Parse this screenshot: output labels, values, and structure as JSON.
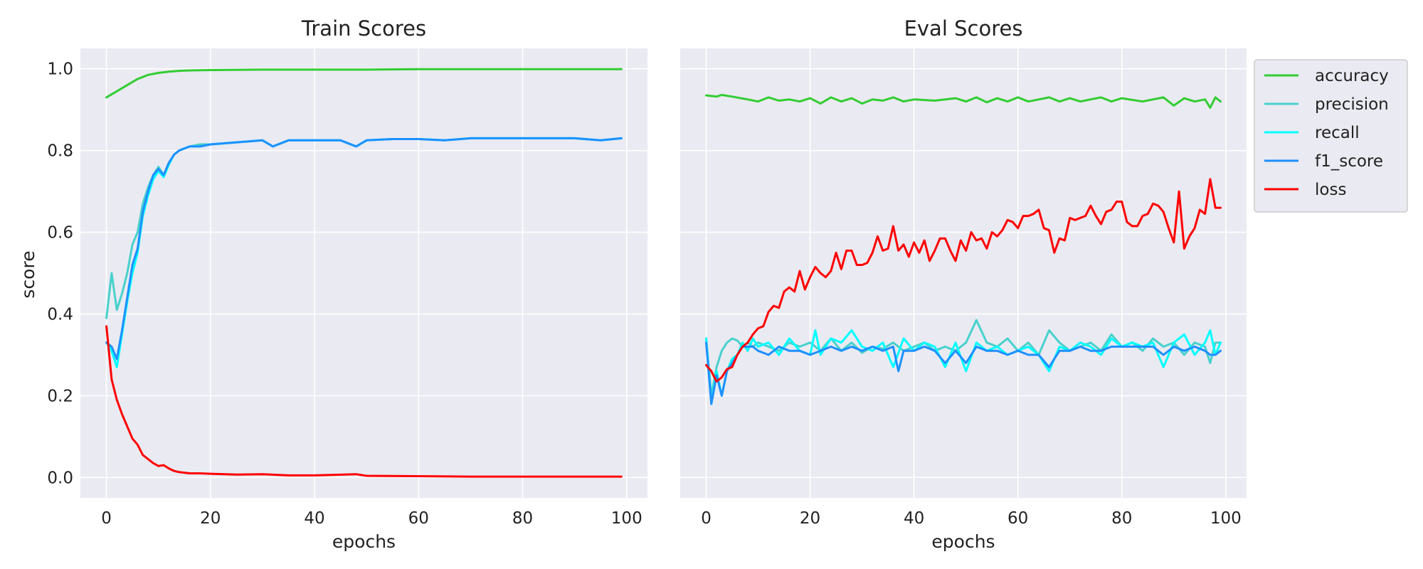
{
  "chart_data": [
    {
      "type": "line",
      "title": "Train Scores",
      "xlabel": "epochs",
      "ylabel": "score",
      "xlim": [
        -5,
        104
      ],
      "ylim": [
        -0.05,
        1.05
      ],
      "xticks": [
        0,
        20,
        40,
        60,
        80,
        100
      ],
      "yticks": [
        0.0,
        0.2,
        0.4,
        0.6,
        0.8,
        1.0
      ],
      "grid": true,
      "legend": "none",
      "series": [
        {
          "name": "accuracy",
          "color": "#32cd32",
          "x": [
            0,
            2,
            4,
            6,
            8,
            10,
            12,
            14,
            16,
            20,
            30,
            40,
            50,
            60,
            70,
            80,
            90,
            99
          ],
          "values": [
            0.93,
            0.945,
            0.96,
            0.975,
            0.985,
            0.99,
            0.993,
            0.995,
            0.996,
            0.997,
            0.998,
            0.998,
            0.998,
            0.999,
            0.999,
            0.999,
            0.999,
            0.999
          ]
        },
        {
          "name": "precision",
          "color": "#48d1cc",
          "x": [
            0,
            1,
            2,
            3,
            4,
            5,
            6,
            7,
            8,
            9,
            10,
            11,
            12,
            13,
            14,
            16,
            18,
            20,
            25,
            30,
            32,
            35,
            40,
            45,
            48,
            50,
            55,
            60,
            65,
            70,
            75,
            80,
            85,
            90,
            95,
            99
          ],
          "values": [
            0.39,
            0.5,
            0.41,
            0.45,
            0.5,
            0.57,
            0.6,
            0.67,
            0.71,
            0.74,
            0.76,
            0.74,
            0.77,
            0.79,
            0.8,
            0.81,
            0.815,
            0.815,
            0.82,
            0.825,
            0.81,
            0.825,
            0.825,
            0.825,
            0.81,
            0.825,
            0.828,
            0.828,
            0.825,
            0.83,
            0.83,
            0.83,
            0.83,
            0.83,
            0.825,
            0.83
          ]
        },
        {
          "name": "recall",
          "color": "#00ffff",
          "x": [
            0,
            1,
            2,
            3,
            4,
            5,
            6,
            7,
            8,
            9,
            10,
            11,
            12,
            13,
            14,
            16,
            18,
            20,
            25,
            30,
            32,
            35,
            40,
            45,
            48,
            50,
            55,
            60,
            65,
            70,
            75,
            80,
            85,
            90,
            95,
            99
          ],
          "values": [
            0.33,
            0.31,
            0.27,
            0.35,
            0.43,
            0.5,
            0.55,
            0.64,
            0.69,
            0.73,
            0.75,
            0.735,
            0.765,
            0.79,
            0.8,
            0.81,
            0.81,
            0.815,
            0.82,
            0.825,
            0.81,
            0.825,
            0.825,
            0.825,
            0.81,
            0.825,
            0.828,
            0.828,
            0.825,
            0.83,
            0.83,
            0.83,
            0.83,
            0.83,
            0.825,
            0.83
          ]
        },
        {
          "name": "f1_score",
          "color": "#1e90ff",
          "x": [
            0,
            1,
            2,
            3,
            4,
            5,
            6,
            7,
            8,
            9,
            10,
            11,
            12,
            13,
            14,
            16,
            18,
            20,
            25,
            30,
            32,
            35,
            40,
            45,
            48,
            50,
            55,
            60,
            65,
            70,
            75,
            80,
            85,
            90,
            95,
            99
          ],
          "values": [
            0.33,
            0.32,
            0.29,
            0.36,
            0.44,
            0.52,
            0.56,
            0.65,
            0.7,
            0.74,
            0.755,
            0.74,
            0.77,
            0.79,
            0.8,
            0.81,
            0.81,
            0.815,
            0.82,
            0.825,
            0.81,
            0.825,
            0.825,
            0.825,
            0.81,
            0.825,
            0.828,
            0.828,
            0.825,
            0.83,
            0.83,
            0.83,
            0.83,
            0.83,
            0.825,
            0.83
          ]
        },
        {
          "name": "loss",
          "color": "#ff0000",
          "x": [
            0,
            1,
            2,
            3,
            4,
            5,
            6,
            7,
            8,
            9,
            10,
            11,
            12,
            13,
            14,
            16,
            18,
            20,
            25,
            30,
            35,
            40,
            48,
            50,
            60,
            70,
            80,
            90,
            99
          ],
          "values": [
            0.37,
            0.24,
            0.19,
            0.155,
            0.125,
            0.095,
            0.08,
            0.055,
            0.045,
            0.035,
            0.028,
            0.03,
            0.022,
            0.016,
            0.013,
            0.01,
            0.01,
            0.009,
            0.007,
            0.008,
            0.005,
            0.005,
            0.008,
            0.004,
            0.003,
            0.002,
            0.002,
            0.002,
            0.002
          ]
        }
      ]
    },
    {
      "type": "line",
      "title": "Eval Scores",
      "xlabel": "epochs",
      "ylabel": "",
      "xlim": [
        -5,
        104
      ],
      "ylim": [
        -0.05,
        1.05
      ],
      "xticks": [
        0,
        20,
        40,
        60,
        80,
        100
      ],
      "yticks": [
        0.0,
        0.2,
        0.4,
        0.6,
        0.8,
        1.0
      ],
      "grid": true,
      "legend": "outside upper right",
      "series": [
        {
          "name": "accuracy",
          "color": "#32cd32",
          "x": [
            0,
            2,
            3,
            5,
            8,
            10,
            12,
            14,
            16,
            18,
            20,
            22,
            24,
            26,
            28,
            30,
            32,
            34,
            36,
            38,
            40,
            44,
            48,
            50,
            52,
            54,
            56,
            58,
            60,
            62,
            64,
            66,
            68,
            70,
            72,
            74,
            76,
            78,
            80,
            84,
            88,
            90,
            92,
            94,
            96,
            97,
            98,
            99
          ],
          "values": [
            0.935,
            0.932,
            0.936,
            0.932,
            0.925,
            0.92,
            0.93,
            0.922,
            0.925,
            0.92,
            0.928,
            0.915,
            0.93,
            0.92,
            0.928,
            0.915,
            0.925,
            0.922,
            0.93,
            0.92,
            0.925,
            0.922,
            0.928,
            0.92,
            0.93,
            0.918,
            0.928,
            0.92,
            0.93,
            0.92,
            0.925,
            0.93,
            0.92,
            0.928,
            0.92,
            0.925,
            0.93,
            0.92,
            0.928,
            0.92,
            0.93,
            0.91,
            0.928,
            0.92,
            0.925,
            0.905,
            0.93,
            0.92
          ]
        },
        {
          "name": "precision",
          "color": "#48d1cc",
          "x": [
            0,
            1,
            2,
            3,
            4,
            5,
            6,
            7,
            8,
            9,
            10,
            12,
            14,
            16,
            18,
            20,
            22,
            24,
            26,
            28,
            30,
            32,
            34,
            36,
            38,
            40,
            42,
            44,
            46,
            48,
            50,
            52,
            54,
            56,
            58,
            60,
            62,
            64,
            66,
            68,
            70,
            72,
            74,
            76,
            78,
            80,
            82,
            84,
            86,
            88,
            90,
            92,
            94,
            96,
            97,
            98,
            99
          ],
          "values": [
            0.34,
            0.2,
            0.27,
            0.31,
            0.33,
            0.34,
            0.335,
            0.32,
            0.33,
            0.32,
            0.33,
            0.32,
            0.31,
            0.33,
            0.32,
            0.33,
            0.31,
            0.34,
            0.31,
            0.33,
            0.305,
            0.32,
            0.315,
            0.33,
            0.31,
            0.32,
            0.33,
            0.31,
            0.32,
            0.31,
            0.33,
            0.385,
            0.33,
            0.32,
            0.34,
            0.31,
            0.33,
            0.3,
            0.36,
            0.33,
            0.31,
            0.32,
            0.33,
            0.31,
            0.35,
            0.32,
            0.33,
            0.31,
            0.34,
            0.32,
            0.33,
            0.3,
            0.33,
            0.32,
            0.28,
            0.33,
            0.33
          ]
        },
        {
          "name": "recall",
          "color": "#00ffff",
          "x": [
            0,
            1,
            2,
            3,
            4,
            5,
            6,
            7,
            8,
            9,
            10,
            12,
            14,
            16,
            18,
            20,
            21,
            22,
            24,
            26,
            28,
            30,
            32,
            34,
            36,
            38,
            40,
            42,
            44,
            46,
            48,
            50,
            52,
            54,
            56,
            58,
            60,
            62,
            64,
            66,
            68,
            70,
            72,
            74,
            76,
            78,
            80,
            82,
            84,
            86,
            88,
            90,
            92,
            94,
            96,
            97,
            98,
            99
          ],
          "values": [
            0.34,
            0.18,
            0.26,
            0.2,
            0.26,
            0.29,
            0.3,
            0.33,
            0.31,
            0.34,
            0.32,
            0.33,
            0.3,
            0.34,
            0.31,
            0.3,
            0.36,
            0.3,
            0.34,
            0.33,
            0.36,
            0.32,
            0.31,
            0.33,
            0.27,
            0.34,
            0.31,
            0.33,
            0.32,
            0.27,
            0.33,
            0.26,
            0.33,
            0.31,
            0.32,
            0.3,
            0.31,
            0.32,
            0.3,
            0.26,
            0.32,
            0.31,
            0.33,
            0.32,
            0.3,
            0.34,
            0.32,
            0.33,
            0.32,
            0.33,
            0.27,
            0.33,
            0.35,
            0.3,
            0.33,
            0.36,
            0.3,
            0.33
          ]
        },
        {
          "name": "f1_score",
          "color": "#1e90ff",
          "x": [
            0,
            1,
            2,
            3,
            4,
            5,
            6,
            7,
            8,
            9,
            10,
            12,
            14,
            16,
            18,
            20,
            22,
            24,
            26,
            28,
            30,
            32,
            34,
            36,
            37,
            38,
            40,
            42,
            44,
            46,
            48,
            50,
            52,
            54,
            56,
            58,
            60,
            62,
            64,
            66,
            68,
            70,
            72,
            74,
            76,
            78,
            80,
            82,
            84,
            86,
            88,
            90,
            92,
            94,
            96,
            97,
            98,
            99
          ],
          "values": [
            0.33,
            0.18,
            0.25,
            0.2,
            0.26,
            0.28,
            0.3,
            0.32,
            0.32,
            0.32,
            0.31,
            0.3,
            0.32,
            0.31,
            0.31,
            0.3,
            0.31,
            0.32,
            0.31,
            0.32,
            0.31,
            0.32,
            0.31,
            0.32,
            0.26,
            0.31,
            0.31,
            0.32,
            0.31,
            0.28,
            0.31,
            0.28,
            0.32,
            0.31,
            0.31,
            0.3,
            0.31,
            0.3,
            0.3,
            0.27,
            0.31,
            0.31,
            0.32,
            0.31,
            0.31,
            0.32,
            0.32,
            0.32,
            0.32,
            0.32,
            0.3,
            0.32,
            0.31,
            0.32,
            0.31,
            0.3,
            0.3,
            0.31
          ]
        },
        {
          "name": "loss",
          "color": "#ff0000",
          "x": [
            0,
            1,
            2,
            3,
            4,
            5,
            6,
            7,
            8,
            9,
            10,
            11,
            12,
            13,
            14,
            15,
            16,
            17,
            18,
            19,
            20,
            21,
            22,
            23,
            24,
            25,
            26,
            27,
            28,
            29,
            30,
            31,
            32,
            33,
            34,
            35,
            36,
            37,
            38,
            39,
            40,
            41,
            42,
            43,
            44,
            45,
            46,
            47,
            48,
            49,
            50,
            51,
            52,
            53,
            54,
            55,
            56,
            57,
            58,
            59,
            60,
            61,
            62,
            63,
            64,
            65,
            66,
            67,
            68,
            69,
            70,
            71,
            72,
            73,
            74,
            75,
            76,
            77,
            78,
            79,
            80,
            81,
            82,
            83,
            84,
            85,
            86,
            87,
            88,
            89,
            90,
            91,
            92,
            93,
            94,
            95,
            96,
            97,
            98,
            99
          ],
          "values": [
            0.275,
            0.26,
            0.235,
            0.245,
            0.265,
            0.27,
            0.3,
            0.32,
            0.33,
            0.35,
            0.365,
            0.37,
            0.405,
            0.42,
            0.415,
            0.455,
            0.465,
            0.455,
            0.505,
            0.46,
            0.49,
            0.515,
            0.5,
            0.49,
            0.505,
            0.55,
            0.51,
            0.555,
            0.555,
            0.52,
            0.52,
            0.525,
            0.55,
            0.59,
            0.555,
            0.56,
            0.615,
            0.555,
            0.57,
            0.54,
            0.575,
            0.55,
            0.58,
            0.53,
            0.555,
            0.585,
            0.585,
            0.555,
            0.53,
            0.58,
            0.555,
            0.6,
            0.58,
            0.585,
            0.56,
            0.6,
            0.59,
            0.605,
            0.63,
            0.625,
            0.61,
            0.64,
            0.64,
            0.645,
            0.655,
            0.61,
            0.605,
            0.55,
            0.585,
            0.58,
            0.635,
            0.63,
            0.635,
            0.64,
            0.665,
            0.64,
            0.62,
            0.65,
            0.655,
            0.675,
            0.675,
            0.625,
            0.615,
            0.615,
            0.64,
            0.645,
            0.67,
            0.665,
            0.65,
            0.61,
            0.575,
            0.7,
            0.56,
            0.59,
            0.61,
            0.655,
            0.645,
            0.73,
            0.66,
            0.66
          ]
        }
      ]
    }
  ]
}
